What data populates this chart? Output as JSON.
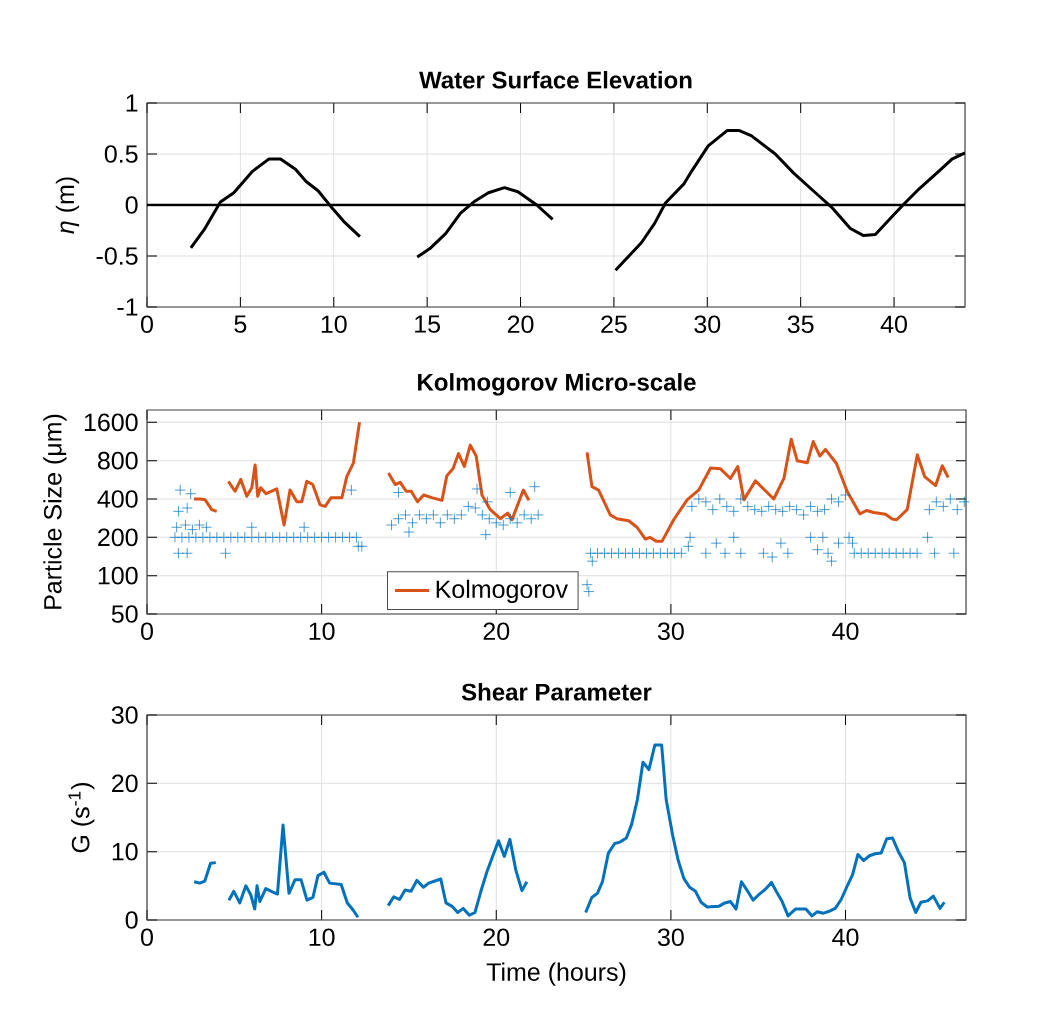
{
  "chart_data": [
    {
      "type": "line",
      "title": "Water Surface Elevation",
      "ylabel": "*η* (m)",
      "x": [
        2.35,
        3.07,
        3.93,
        4.65,
        5.65,
        6.52,
        7.15,
        7.95,
        8.52,
        9.16,
        9.96,
        10.53,
        11.4,
        13.0,
        14.47,
        15.13,
        15.99,
        16.79,
        17.57,
        18.28,
        19.14,
        19.86,
        20.87,
        21.72,
        23.5,
        25.09,
        25.6,
        26.47,
        27.18,
        27.76,
        28.76,
        29.19,
        30.05,
        31.06,
        31.72,
        32.35,
        33.64,
        34.64,
        35.79,
        36.65,
        37.66,
        38.37,
        39.0,
        39.81,
        40.53,
        41.24,
        42.39,
        43.1,
        43.8
      ],
      "series": [
        {
          "color": "#000000",
          "values": [
            -0.42,
            -0.24,
            0.03,
            0.12,
            0.33,
            0.45,
            0.45,
            0.35,
            0.23,
            0.14,
            -0.04,
            -0.16,
            -0.31,
            null,
            -0.51,
            -0.43,
            -0.28,
            -0.08,
            0.04,
            0.12,
            0.17,
            0.13,
            0.0,
            -0.14,
            null,
            -0.64,
            -0.54,
            -0.37,
            -0.18,
            0.02,
            0.21,
            0.34,
            0.58,
            0.73,
            0.73,
            0.68,
            0.5,
            0.31,
            0.12,
            -0.02,
            -0.23,
            -0.3,
            -0.29,
            -0.13,
            0.01,
            0.14,
            0.33,
            0.45,
            0.51
          ]
        }
      ],
      "xlim": [
        0,
        43.8
      ],
      "ylim": [
        -1,
        1
      ],
      "xticks": [
        0,
        5,
        10,
        15,
        20,
        25,
        30,
        35,
        40
      ],
      "yticks": [
        -1,
        -0.5,
        0,
        0.5,
        1
      ],
      "grid": true,
      "ref_lines": [
        {
          "axis": "y",
          "value": 0,
          "color": "#000000"
        }
      ]
    },
    {
      "type": "line",
      "title": "Kolmogorov Micro-scale",
      "ylabel": "Particle Size (μm)",
      "log": "y",
      "series": [
        {
          "type": "scatter",
          "marker": "cross",
          "color": "#0072bd",
          "x": [
            1.6,
            2.0,
            2.4,
            2.8,
            3.2,
            3.6,
            4.0,
            4.4,
            4.8,
            5.2,
            5.6,
            6.0,
            6.4,
            6.8,
            7.2,
            7.6,
            8.0,
            8.4,
            8.8,
            9.2,
            9.6,
            10.0,
            10.4,
            10.8,
            11.2,
            11.6,
            12.0,
            1.7,
            2.2,
            2.6,
            3.0,
            3.4,
            1.8,
            2.3,
            1.9,
            2.5,
            4.5,
            1.8,
            2.3,
            12.1,
            12.3,
            11.7,
            6.0,
            9.0,
            14.0,
            14.4,
            14.8,
            15.2,
            15.6,
            16.0,
            16.4,
            16.8,
            17.2,
            17.6,
            18.0,
            18.4,
            18.8,
            19.2,
            19.6,
            20.0,
            20.4,
            20.8,
            21.2,
            21.6,
            22.0,
            22.4,
            14.4,
            18.9,
            19.5,
            20.8,
            22.2,
            19.4,
            15.0,
            25.4,
            25.8,
            26.2,
            26.6,
            27.0,
            27.4,
            27.8,
            28.2,
            28.6,
            29.0,
            29.4,
            29.8,
            30.2,
            30.6,
            25.2,
            25.3,
            25.5,
            31.0,
            31.1,
            31.2,
            31.6,
            32.0,
            32.4,
            32.8,
            33.2,
            33.6,
            34.0,
            34.4,
            34.8,
            35.2,
            35.6,
            36.0,
            36.4,
            36.8,
            37.2,
            37.6,
            38.0,
            38.4,
            38.8,
            39.2,
            39.6,
            40.0,
            32.0,
            32.6,
            33.1,
            33.6,
            34.0,
            35.3,
            35.8,
            36.3,
            36.7,
            38.0,
            38.4,
            38.7,
            39.0,
            39.6,
            39.2,
            40.5,
            40.9,
            41.3,
            41.7,
            42.1,
            42.5,
            42.9,
            43.3,
            43.7,
            44.1,
            40.2,
            40.4,
            44.8,
            45.2,
            45.6,
            46.0,
            46.4,
            46.8,
            45.1,
            46.2,
            44.7
          ],
          "values": [
            200,
            200,
            200,
            200,
            200,
            200,
            200,
            200,
            200,
            200,
            200,
            200,
            200,
            200,
            200,
            200,
            200,
            200,
            200,
            200,
            200,
            200,
            200,
            200,
            200,
            200,
            200,
            240,
            250,
            230,
            250,
            240,
            150,
            150,
            470,
            440,
            150,
            320,
            340,
            170,
            170,
            470,
            240,
            240,
            250,
            280,
            300,
            260,
            300,
            280,
            300,
            260,
            300,
            280,
            300,
            350,
            340,
            300,
            280,
            260,
            250,
            280,
            260,
            300,
            280,
            300,
            450,
            480,
            380,
            450,
            500,
            210,
            220,
            150,
            150,
            150,
            150,
            150,
            150,
            150,
            150,
            150,
            150,
            150,
            150,
            150,
            150,
            85,
            75,
            130,
            170,
            200,
            350,
            400,
            380,
            330,
            400,
            350,
            320,
            400,
            350,
            330,
            320,
            350,
            330,
            320,
            350,
            330,
            300,
            350,
            320,
            330,
            400,
            380,
            430,
            150,
            180,
            150,
            200,
            150,
            150,
            140,
            180,
            150,
            200,
            160,
            200,
            150,
            180,
            130,
            150,
            150,
            150,
            150,
            150,
            150,
            150,
            150,
            150,
            150,
            200,
            180,
            330,
            380,
            350,
            400,
            330,
            380,
            150,
            150,
            200
          ]
        },
        {
          "type": "line",
          "name": "Kolmogorov",
          "color": "#d95319",
          "x": [
            2.69,
            3.04,
            3.32,
            3.71,
            3.99,
            4.3,
            4.66,
            5.04,
            5.37,
            5.71,
            6.0,
            6.19,
            6.34,
            6.51,
            6.82,
            7.43,
            7.85,
            8.19,
            8.58,
            8.86,
            9.15,
            9.49,
            9.91,
            10.2,
            10.54,
            11.16,
            11.44,
            11.82,
            12.17,
            13.0,
            13.83,
            14.21,
            14.5,
            14.84,
            15.13,
            15.49,
            15.84,
            16.31,
            16.89,
            17.17,
            17.52,
            17.84,
            18.17,
            18.51,
            18.85,
            19.18,
            19.66,
            20.23,
            20.65,
            20.9,
            21.55,
            21.87,
            23.5,
            25.2,
            25.48,
            25.86,
            26.53,
            26.91,
            27.58,
            28.06,
            28.54,
            28.79,
            29.17,
            29.49,
            30.16,
            30.93,
            31.6,
            32.27,
            32.84,
            33.41,
            33.83,
            34.18,
            34.84,
            35.89,
            36.47,
            36.89,
            37.23,
            37.81,
            38.15,
            38.53,
            38.85,
            39.48,
            40.09,
            40.82,
            41.2,
            41.62,
            42.29,
            42.68,
            42.92,
            43.53,
            44.11,
            44.53,
            45.16,
            45.54,
            45.88
          ],
          "values": [
            400,
            400,
            395,
            330,
            320,
            null,
            550,
            460,
            570,
            420,
            490,
            740,
            420,
            490,
            440,
            480,
            250,
            470,
            380,
            380,
            550,
            520,
            360,
            350,
            410,
            410,
            600,
            770,
            1600,
            null,
            640,
            520,
            540,
            460,
            460,
            380,
            430,
            410,
            390,
            610,
            690,
            910,
            720,
            1060,
            870,
            430,
            330,
            280,
            310,
            275,
            470,
            390,
            null,
            930,
            500,
            470,
            300,
            280,
            270,
            240,
            194,
            200,
            186,
            186,
            275,
            394,
            472,
            700,
            690,
            580,
            720,
            394,
            555,
            400,
            580,
            1180,
            800,
            770,
            1130,
            870,
            980,
            760,
            460,
            306,
            325,
            313,
            304,
            278,
            275,
            330,
            890,
            600,
            510,
            730,
            590
          ]
        }
      ],
      "xlim": [
        0,
        46.9
      ],
      "ylim": [
        50,
        2000
      ],
      "xticks": [
        0,
        10,
        20,
        30,
        40
      ],
      "yticks": [
        50,
        100,
        200,
        400,
        800,
        1600
      ],
      "grid": true,
      "legend": "bottom"
    },
    {
      "type": "line",
      "title": "Shear Parameter",
      "xlabel": "Time (hours)",
      "ylabel": "G (s$^{-1}$)",
      "x": [
        2.7,
        3.03,
        3.31,
        3.64,
        3.94,
        4.3,
        4.69,
        4.97,
        5.31,
        5.66,
        5.94,
        6.17,
        6.3,
        6.46,
        6.8,
        7.12,
        7.47,
        7.79,
        8.13,
        8.48,
        8.82,
        9.16,
        9.5,
        9.79,
        10.13,
        10.46,
        11.12,
        11.47,
        11.79,
        12.08,
        13.0,
        13.81,
        14.13,
        14.46,
        14.78,
        15.12,
        15.45,
        15.83,
        16.13,
        16.82,
        17.12,
        17.47,
        17.79,
        18.11,
        18.46,
        18.78,
        19.12,
        19.47,
        19.79,
        20.13,
        20.46,
        20.78,
        21.12,
        21.47,
        21.75,
        23.5,
        25.12,
        25.47,
        25.79,
        26.08,
        26.42,
        26.78,
        27.09,
        27.45,
        27.75,
        28.08,
        28.4,
        28.74,
        29.08,
        29.47,
        29.73,
        30.11,
        30.42,
        30.74,
        31.07,
        31.41,
        31.73,
        32.08,
        32.74,
        33.09,
        33.41,
        33.73,
        34.04,
        34.4,
        34.71,
        35.07,
        35.41,
        35.76,
        36.08,
        36.37,
        36.71,
        37.13,
        37.73,
        38.08,
        38.37,
        38.74,
        39.09,
        39.41,
        39.75,
        40.08,
        40.4,
        40.71,
        41.03,
        41.37,
        41.7,
        42.04,
        42.36,
        42.69,
        43.03,
        43.37,
        43.7,
        44.02,
        44.32,
        44.7,
        45.03,
        45.41,
        45.66
      ],
      "series": [
        {
          "color": "#0072bd",
          "values": [
            5.6,
            5.4,
            5.7,
            8.3,
            8.4,
            null,
            2.9,
            4.2,
            2.5,
            5.0,
            3.7,
            1.6,
            5.0,
            2.7,
            4.6,
            4.2,
            3.8,
            13.9,
            3.9,
            5.9,
            5.9,
            2.9,
            3.3,
            6.5,
            7.0,
            5.4,
            5.2,
            2.5,
            1.5,
            0.4,
            null,
            2.1,
            3.4,
            3.0,
            4.4,
            4.2,
            5.8,
            4.8,
            5.4,
            6.0,
            2.5,
            2.0,
            1.1,
            1.7,
            0.7,
            1.1,
            4.2,
            7.1,
            9.3,
            11.6,
            9.3,
            11.8,
            7.3,
            4.3,
            5.6,
            null,
            1.1,
            3.3,
            3.9,
            5.6,
            9.8,
            11.2,
            11.4,
            12.0,
            14.0,
            17.6,
            23.1,
            22.0,
            25.6,
            25.6,
            17.6,
            12.3,
            8.7,
            6.1,
            4.8,
            4.2,
            2.6,
            1.9,
            2.0,
            2.5,
            2.7,
            1.6,
            5.6,
            4.2,
            2.9,
            3.8,
            4.5,
            5.5,
            4.0,
            2.7,
            0.6,
            1.6,
            1.6,
            0.6,
            1.2,
            1.0,
            1.3,
            1.7,
            3.0,
            4.9,
            6.6,
            9.6,
            8.7,
            9.4,
            9.7,
            9.8,
            11.9,
            12.0,
            10.0,
            8.4,
            3.2,
            1.1,
            2.6,
            2.8,
            3.5,
            1.7,
            2.6
          ]
        }
      ],
      "xlim": [
        0,
        46.9
      ],
      "ylim": [
        0,
        30
      ],
      "xticks": [
        0,
        10,
        20,
        30,
        40
      ],
      "yticks": [
        0,
        10,
        20,
        30
      ],
      "grid": true
    }
  ]
}
